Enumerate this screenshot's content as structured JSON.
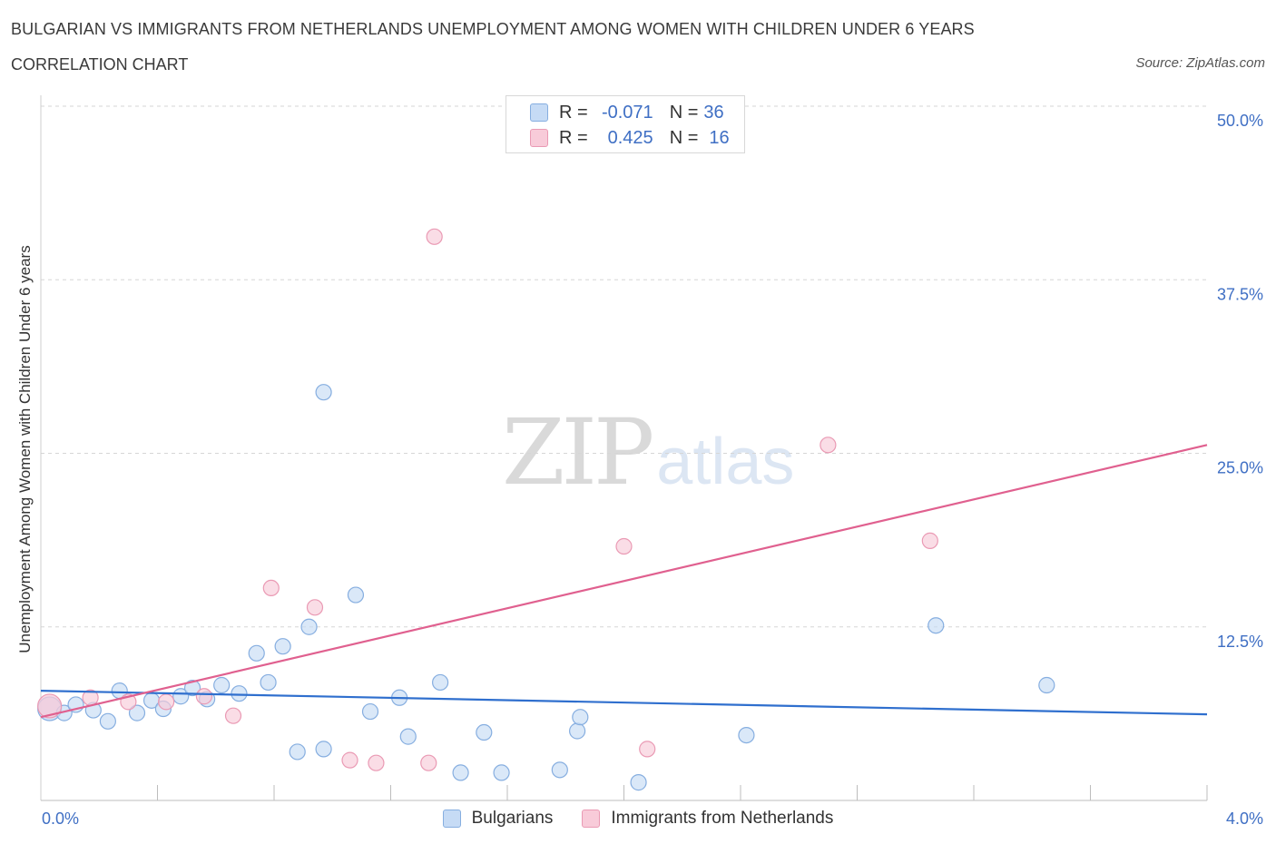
{
  "header": {
    "title": "BULGARIAN VS IMMIGRANTS FROM NETHERLANDS UNEMPLOYMENT AMONG WOMEN WITH CHILDREN UNDER 6 YEARS",
    "subtitle": "CORRELATION CHART",
    "source": "Source: ZipAtlas.com"
  },
  "watermark": {
    "zip": "ZIP",
    "atlas": "atlas"
  },
  "stats_legend": {
    "rows": [
      {
        "r_label": "R =",
        "r_value": "-0.071",
        "n_label": "N =",
        "n_value": "36",
        "color": "#aac8f0"
      },
      {
        "r_label": "R =",
        "r_value": "0.425",
        "n_label": "N =",
        "n_value": "16",
        "color": "#f5b8cb"
      }
    ]
  },
  "colors": {
    "blue_fill": "#c6dbf5",
    "blue_stroke": "#86aee0",
    "blue_line": "#2f6fce",
    "pink_fill": "#f8cbd9",
    "pink_stroke": "#ea9ab4",
    "pink_line": "#e0608f",
    "grid": "#d6d6d6",
    "tick_label": "#3f6fc4"
  },
  "chart_data": {
    "type": "scatter",
    "title": "BULGARIAN VS IMMIGRANTS FROM NETHERLANDS UNEMPLOYMENT AMONG WOMEN WITH CHILDREN UNDER 6 YEARS",
    "subtitle": "CORRELATION CHART",
    "ylabel": "Unemployment Among Women with Children Under 6 years",
    "xlabel": "",
    "xlim": [
      0,
      4.0
    ],
    "ylim": [
      0,
      50.0
    ],
    "x_tick_labels": [
      "0.0%",
      "4.0%"
    ],
    "y_ticks": [
      12.5,
      25.0,
      37.5,
      50.0
    ],
    "y_tick_labels": [
      "12.5%",
      "25.0%",
      "37.5%",
      "50.0%"
    ],
    "grid": "horizontal dashed",
    "legend_position": "bottom",
    "series": [
      {
        "name": "Bulgarians",
        "points": [
          [
            0.03,
            6.6
          ],
          [
            0.08,
            6.3
          ],
          [
            0.12,
            6.9
          ],
          [
            0.18,
            6.5
          ],
          [
            0.23,
            5.7
          ],
          [
            0.27,
            7.9
          ],
          [
            0.33,
            6.3
          ],
          [
            0.38,
            7.2
          ],
          [
            0.42,
            6.6
          ],
          [
            0.48,
            7.5
          ],
          [
            0.52,
            8.1
          ],
          [
            0.57,
            7.3
          ],
          [
            0.62,
            8.3
          ],
          [
            0.68,
            7.7
          ],
          [
            0.74,
            10.6
          ],
          [
            0.78,
            8.5
          ],
          [
            0.83,
            11.1
          ],
          [
            0.88,
            3.5
          ],
          [
            0.92,
            12.5
          ],
          [
            0.97,
            3.7
          ],
          [
            0.97,
            29.4
          ],
          [
            1.08,
            14.8
          ],
          [
            1.13,
            6.4
          ],
          [
            1.23,
            7.4
          ],
          [
            1.26,
            4.6
          ],
          [
            1.37,
            8.5
          ],
          [
            1.44,
            2.0
          ],
          [
            1.52,
            4.9
          ],
          [
            1.58,
            2.0
          ],
          [
            1.78,
            2.2
          ],
          [
            1.84,
            5.0
          ],
          [
            1.85,
            6.0
          ],
          [
            2.05,
            1.3
          ],
          [
            2.42,
            4.7
          ],
          [
            3.07,
            12.6
          ],
          [
            3.45,
            8.3
          ]
        ],
        "trend": {
          "x": [
            0.0,
            4.0
          ],
          "y": [
            7.9,
            6.2
          ]
        }
      },
      {
        "name": "Immigrants from Netherlands",
        "points": [
          [
            0.03,
            6.8
          ],
          [
            0.17,
            7.4
          ],
          [
            0.3,
            7.1
          ],
          [
            0.43,
            7.1
          ],
          [
            0.56,
            7.5
          ],
          [
            0.66,
            6.1
          ],
          [
            0.79,
            15.3
          ],
          [
            0.94,
            13.9
          ],
          [
            1.06,
            2.9
          ],
          [
            1.15,
            2.7
          ],
          [
            1.33,
            2.7
          ],
          [
            1.35,
            40.6
          ],
          [
            2.0,
            18.3
          ],
          [
            2.08,
            3.7
          ],
          [
            2.7,
            25.6
          ],
          [
            3.05,
            18.7
          ]
        ],
        "trend": {
          "x": [
            0.0,
            4.0
          ],
          "y": [
            6.0,
            25.6
          ]
        }
      }
    ]
  }
}
